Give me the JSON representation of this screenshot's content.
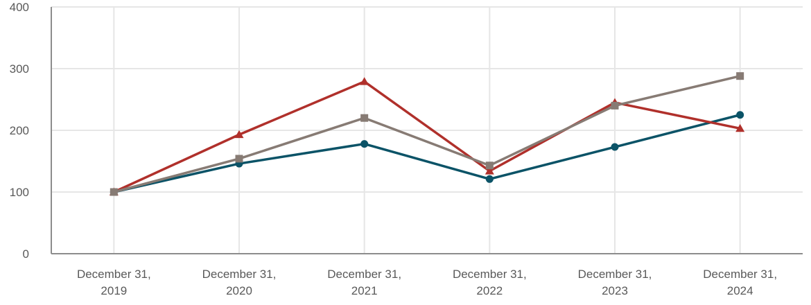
{
  "chart_data": {
    "type": "line",
    "title": "",
    "xlabel": "",
    "ylabel": "",
    "ylim": [
      0,
      400
    ],
    "yticks": [
      "0",
      "100",
      "200",
      "300",
      "400"
    ],
    "categories": [
      [
        "December 31,",
        "2019"
      ],
      [
        "December 31,",
        "2020"
      ],
      [
        "December 31,",
        "2021"
      ],
      [
        "December 31,",
        "2022"
      ],
      [
        "December 31,",
        "2023"
      ],
      [
        "December 31,",
        "2024"
      ]
    ],
    "grid": true,
    "series": [
      {
        "name": "series-1",
        "color": "#0b5367",
        "marker": "circle",
        "values": [
          100,
          146,
          178,
          121,
          173,
          225
        ]
      },
      {
        "name": "series-2",
        "color": "#b0302b",
        "marker": "triangle",
        "values": [
          100,
          193,
          279,
          134,
          245,
          203
        ]
      },
      {
        "name": "series-3",
        "color": "#877b74",
        "marker": "square",
        "values": [
          100,
          154,
          220,
          143,
          240,
          288
        ]
      }
    ]
  }
}
